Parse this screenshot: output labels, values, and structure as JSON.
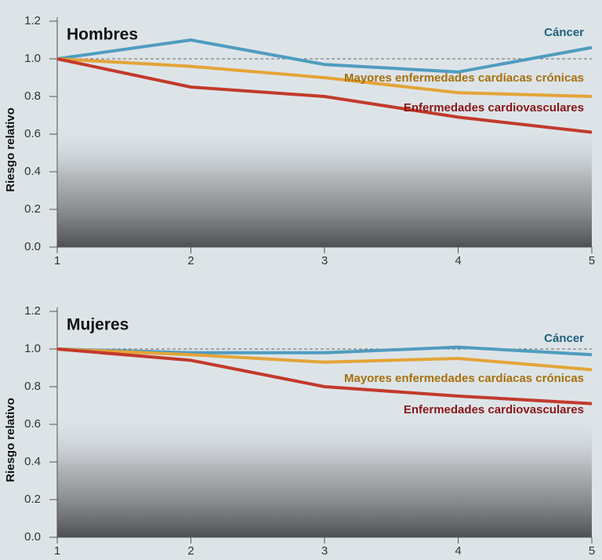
{
  "chart_data": [
    {
      "type": "line",
      "title": "Hombres",
      "y_label": "Riesgo relativo",
      "x": [
        1,
        2,
        3,
        4,
        5
      ],
      "xlim": [
        1,
        5
      ],
      "xticks": [
        1,
        2,
        3,
        4,
        5
      ],
      "ylim": [
        0,
        1.2
      ],
      "yticks": [
        {
          "value": 0,
          "label": "0.0"
        },
        0.2,
        0.4,
        0.6,
        0.8,
        {
          "value": 1,
          "label": "1.0"
        },
        1.2
      ],
      "reference_line": 1,
      "series": [
        {
          "name": "Cáncer",
          "color": "#4f9cbf",
          "label_color": "#1f5f80",
          "values": [
            1.0,
            1.1,
            0.97,
            0.93,
            1.06
          ]
        },
        {
          "name": "Mayores enfermedades cardíacas crónicas",
          "color": "#e3a437",
          "label_color": "#a8700c",
          "values": [
            1.0,
            0.96,
            0.9,
            0.82,
            0.8
          ]
        },
        {
          "name": "Enfermedades cardiovasculares",
          "color": "#c23a2c",
          "label_color": "#8a1616",
          "values": [
            1.0,
            0.85,
            0.8,
            0.69,
            0.61
          ]
        }
      ]
    },
    {
      "type": "line",
      "title": "Mujeres",
      "y_label": "Riesgo relativo",
      "x": [
        1,
        2,
        3,
        4,
        5
      ],
      "xlim": [
        1,
        5
      ],
      "xticks": [
        1,
        2,
        3,
        4,
        5
      ],
      "ylim": [
        0,
        1.2
      ],
      "yticks": [
        {
          "value": 0,
          "label": "0.0"
        },
        0.2,
        0.4,
        0.6,
        0.8,
        {
          "value": 1,
          "label": "1.0"
        },
        1.2
      ],
      "reference_line": 1,
      "series": [
        {
          "name": "Cáncer",
          "color": "#4f9cbf",
          "label_color": "#1f5f80",
          "values": [
            1.0,
            0.98,
            0.98,
            1.01,
            0.97
          ]
        },
        {
          "name": "Mayores enfermedades cardíacas crónicas",
          "color": "#e3a437",
          "label_color": "#a8700c",
          "values": [
            1.0,
            0.97,
            0.93,
            0.95,
            0.89
          ]
        },
        {
          "name": "Enfermedades cardiovasculares",
          "color": "#c23a2c",
          "label_color": "#8a1616",
          "values": [
            1.0,
            0.94,
            0.8,
            0.75,
            0.71
          ]
        }
      ]
    }
  ]
}
